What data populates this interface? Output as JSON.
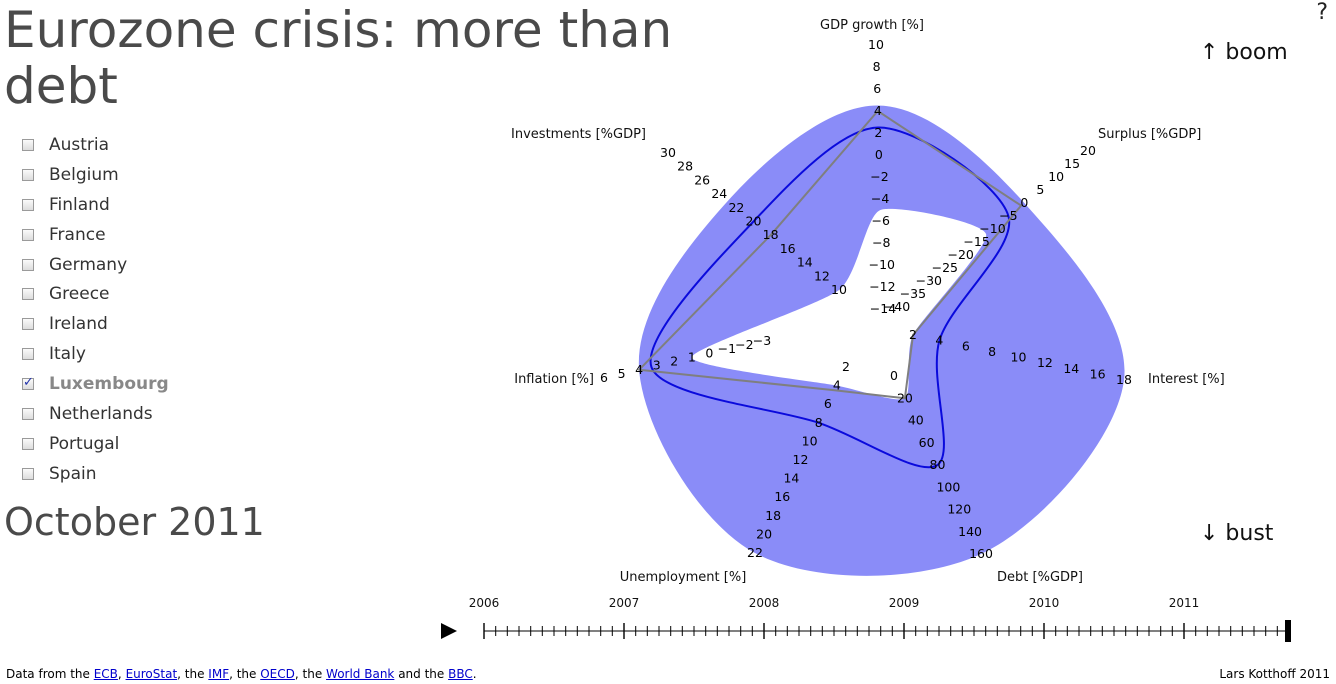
{
  "title": "Eurozone crisis: more than debt",
  "help_label": "?",
  "boom_label": "↑ boom",
  "bust_label": "↓ bust",
  "date_label": "October 2011",
  "countries": [
    {
      "name": "Austria",
      "checked": false
    },
    {
      "name": "Belgium",
      "checked": false
    },
    {
      "name": "Finland",
      "checked": false
    },
    {
      "name": "France",
      "checked": false
    },
    {
      "name": "Germany",
      "checked": false
    },
    {
      "name": "Greece",
      "checked": false
    },
    {
      "name": "Ireland",
      "checked": false
    },
    {
      "name": "Italy",
      "checked": false
    },
    {
      "name": "Luxembourg",
      "checked": true
    },
    {
      "name": "Netherlands",
      "checked": false
    },
    {
      "name": "Portugal",
      "checked": false
    },
    {
      "name": "Spain",
      "checked": false
    }
  ],
  "footer": {
    "prefix": "Data from the ",
    "links": [
      "ECB",
      "EuroStat",
      "IMF",
      "OECD",
      "World Bank",
      "BBC"
    ],
    "sep1": ", ",
    "sep2": ", the ",
    "sep3": ", the ",
    "sep4": ", the ",
    "sep5": " and the ",
    "suffix": ".",
    "author": "Lars Kotthoff 2011"
  },
  "colors": {
    "band": "#8a8cf8",
    "country_line": "#0a0adc",
    "average_line": "#7f7f7f"
  },
  "chart_data": {
    "type": "radar",
    "axes": [
      {
        "label": "GDP growth [%]",
        "ticks": [
          10,
          8,
          6,
          4,
          2,
          0,
          -2,
          -4,
          -6,
          -8,
          -10,
          -12,
          -14
        ]
      },
      {
        "label": "Surplus [%GDP]",
        "ticks": [
          20,
          15,
          10,
          5,
          0,
          -5,
          -10,
          -15,
          -20,
          -25,
          -30,
          -35,
          -40
        ]
      },
      {
        "label": "Interest [%]",
        "ticks": [
          18,
          16,
          14,
          12,
          10,
          8,
          6,
          4,
          2
        ]
      },
      {
        "label": "Debt [%GDP]",
        "ticks": [
          160,
          140,
          120,
          100,
          80,
          60,
          40,
          20,
          0
        ]
      },
      {
        "label": "Unemployment [%]",
        "ticks": [
          22,
          20,
          18,
          16,
          14,
          12,
          10,
          8,
          6,
          4,
          2
        ]
      },
      {
        "label": "Inflation [%]",
        "ticks": [
          6,
          5,
          4,
          3,
          2,
          1,
          0,
          -1,
          -2,
          -3
        ]
      },
      {
        "label": "Investments [%GDP]",
        "ticks": [
          30,
          28,
          26,
          24,
          22,
          20,
          18,
          16,
          14,
          12,
          10
        ]
      }
    ],
    "band": {
      "max": [
        4.5,
        0,
        18,
        160,
        22,
        4,
        23
      ],
      "min": [
        -5,
        -12,
        2,
        20,
        4,
        1,
        10
      ]
    },
    "series": [
      {
        "name": "Luxembourg",
        "values": [
          2.5,
          -5,
          4,
          80,
          8,
          3.3,
          20
        ],
        "color": "#0a0adc"
      },
      {
        "values": [
          4,
          -1,
          2,
          20,
          4.5,
          4,
          18
        ],
        "color": "#7f7f7f"
      }
    ],
    "timeline": {
      "years": [
        "2006",
        "2007",
        "2008",
        "2009",
        "2010",
        "2011"
      ],
      "current": "October 2011"
    }
  }
}
